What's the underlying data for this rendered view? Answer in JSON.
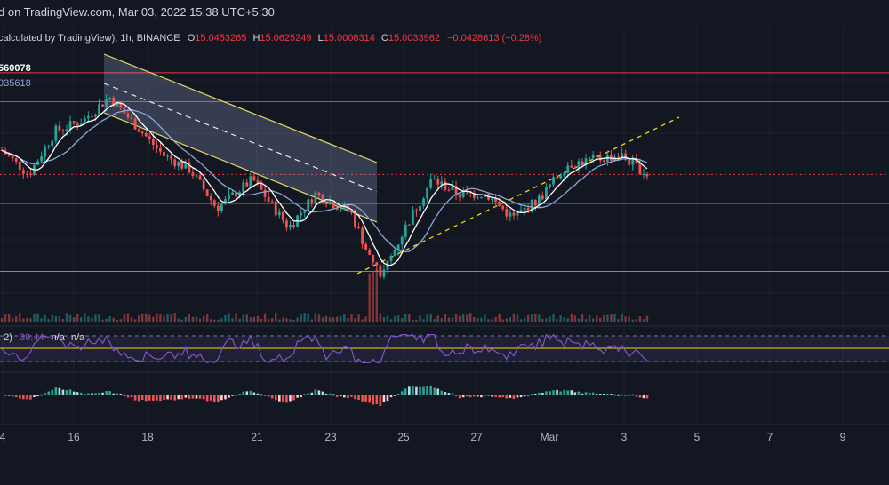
{
  "header": {
    "line1": "d on TradingView.com, Mar 03, 2022 15:38 UTC+5:30",
    "line2_prefix": "calculated by TradingView), 1h, BINANCE",
    "o_label": "O",
    "o_value": "15.0453265",
    "h_label": "H",
    "h_value": "15.0625249",
    "l_label": "L",
    "l_value": "15.0008314",
    "c_label": "C",
    "c_value": "15.0033962",
    "change": "−0.0428613 (−0.28%)"
  },
  "legend": {
    "ma_fast_value": "560078",
    "ma_slow_value": "035618"
  },
  "rsi": {
    "label_prefix": ", 2)",
    "value": "39.44",
    "na1": "n/a",
    "na2": "n/a"
  },
  "colors": {
    "background": "#131722",
    "grid": "#1e222d",
    "up_candle": "#26a69a",
    "down_candle": "#ef5350",
    "resistance_line": "#f23645",
    "support_line": "#4caf50",
    "channel": "#e5d96b",
    "ma_fast": "#ffffff",
    "ma_slow": "#8aa8d8",
    "rsi_line": "#7e57c2",
    "rsi_mid": "#ffd600",
    "trendline": "#ffd600"
  },
  "chart_data": {
    "type": "candlestick",
    "timeframe": "1h",
    "x_tick_labels": [
      "4",
      "16",
      "18",
      "21",
      "23",
      "25",
      "27",
      "Mar",
      "3",
      "5",
      "7",
      "9"
    ],
    "price_range": [
      12.0,
      17.5
    ],
    "horizontal_levels": [
      {
        "name": "resistance-top",
        "value": 17.1,
        "color": "#f23645"
      },
      {
        "name": "resistance-2",
        "value": 16.5,
        "color": "#f23645"
      },
      {
        "name": "resistance-3",
        "value": 15.4,
        "color": "#f23645"
      },
      {
        "name": "current-level",
        "value": 15.0,
        "color": "#f23645",
        "style": "dotted"
      },
      {
        "name": "resistance-4",
        "value": 14.4,
        "color": "#f23645"
      },
      {
        "name": "support",
        "value": 13.0,
        "color": "#4caf50"
      }
    ],
    "close_path": [
      {
        "t": 0,
        "close": 15.5
      },
      {
        "t": 1.5,
        "close": 15.0
      },
      {
        "t": 3,
        "close": 15.9
      },
      {
        "t": 4.5,
        "close": 16.1
      },
      {
        "t": 6,
        "close": 16.6
      },
      {
        "t": 7.5,
        "close": 16.0
      },
      {
        "t": 9,
        "close": 15.4
      },
      {
        "t": 10.5,
        "close": 15.1
      },
      {
        "t": 12,
        "close": 14.3
      },
      {
        "t": 14,
        "close": 14.9
      },
      {
        "t": 16,
        "close": 13.9
      },
      {
        "t": 17.5,
        "close": 14.6
      },
      {
        "t": 19.5,
        "close": 14.2
      },
      {
        "t": 20.5,
        "close": 13.3
      },
      {
        "t": 21.2,
        "close": 12.9
      },
      {
        "t": 22.5,
        "close": 13.9
      },
      {
        "t": 24,
        "close": 14.9
      },
      {
        "t": 25.5,
        "close": 14.6
      },
      {
        "t": 27,
        "close": 14.6
      },
      {
        "t": 28.5,
        "close": 14.1
      },
      {
        "t": 30,
        "close": 14.5
      },
      {
        "t": 31.5,
        "close": 15.2
      },
      {
        "t": 33,
        "close": 15.3
      },
      {
        "t": 34.5,
        "close": 15.4
      },
      {
        "t": 36,
        "close": 15.0
      }
    ],
    "rsi": {
      "ylim": [
        0,
        100
      ],
      "upper_band": 70,
      "middle": 50,
      "lower_band": 30,
      "last": 39.44
    },
    "indicators": [
      "moving average (fast, white)",
      "moving average (slow, blue)",
      "volume",
      "RSI",
      "histogram oscillator"
    ]
  }
}
